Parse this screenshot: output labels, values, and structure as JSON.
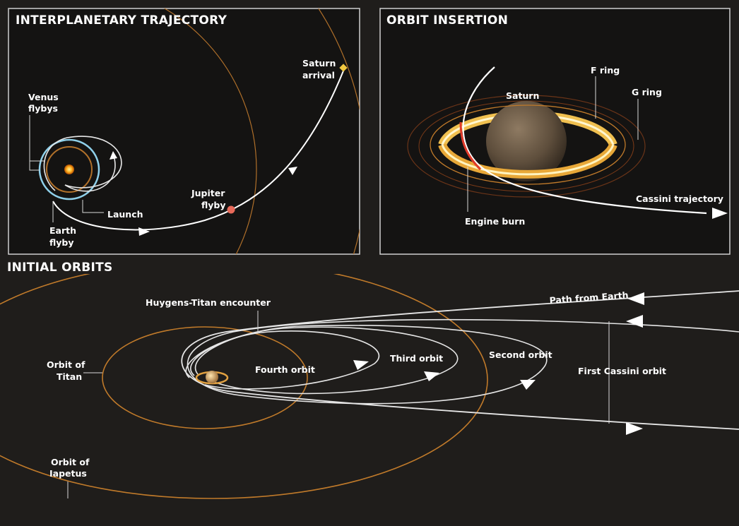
{
  "panels": {
    "interplanetary": {
      "title": "INTERPLANETARY TRAJECTORY",
      "labels": {
        "venus_flybys": [
          "Venus",
          "flybys"
        ],
        "launch": "Launch",
        "earth_flyby": [
          "Earth",
          "flyby"
        ],
        "jupiter_flyby": [
          "Jupiter",
          "flyby"
        ],
        "saturn_arrival": [
          "Saturn",
          "arrival"
        ]
      }
    },
    "orbit_insertion": {
      "title": "ORBIT INSERTION",
      "labels": {
        "saturn": "Saturn",
        "f_ring": "F ring",
        "g_ring": "G ring",
        "engine_burn": "Engine burn",
        "cassini_trajectory": "Cassini trajectory"
      }
    },
    "initial_orbits": {
      "title": "INITIAL ORBITS",
      "labels": {
        "huygens_titan": "Huygens-Titan encounter",
        "path_from_earth": "Path from Earth",
        "orbit_of_titan": [
          "Orbit of",
          "Titan"
        ],
        "fourth_orbit": "Fourth orbit",
        "third_orbit": "Third orbit",
        "second_orbit": "Second orbit",
        "first_cassini_orbit": "First Cassini orbit",
        "orbit_of_iapetus": [
          "Orbit of",
          "Iapetus"
        ]
      }
    }
  },
  "colors": {
    "background": "#1f1d1b",
    "panel_border": "#cfcfcf",
    "orbit_orange": "#c07a2a",
    "trajectory_white": "#ffffff",
    "venus_orbit_blue": "#8fd0ea",
    "jupiter_marker": "#e86a5a",
    "saturn_marker": "#f2c840",
    "engine_burn_red": "#e03a2a",
    "ring_gold": "#e8b848"
  }
}
